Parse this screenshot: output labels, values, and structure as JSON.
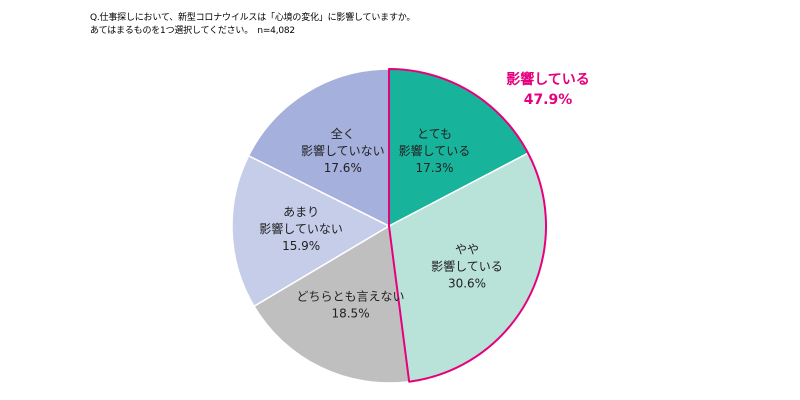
{
  "question": {
    "line1": "Q.仕事探しにおいて、新型コロナウイルスは「心境の変化」に影響していますか。",
    "line2": "あてはまるものを1つ選択してください。　n=4,082"
  },
  "callout": {
    "label": "影響している",
    "value": "47.9%",
    "color": "#e6007e"
  },
  "chart_data": {
    "type": "pie",
    "start_angle_deg": 0,
    "direction": "clockwise",
    "slices": [
      {
        "label_lines": [
          "とても",
          "影響している"
        ],
        "value": 17.3,
        "value_label": "17.3%",
        "color": "#17b39a"
      },
      {
        "label_lines": [
          "やや",
          "影響している"
        ],
        "value": 30.6,
        "value_label": "30.6%",
        "color": "#b9e2d9"
      },
      {
        "label_lines": [
          "どちらとも言えない"
        ],
        "value": 18.5,
        "value_label": "18.5%",
        "color": "#bfbfbf"
      },
      {
        "label_lines": [
          "あまり",
          "影響していない"
        ],
        "value": 15.9,
        "value_label": "15.9%",
        "color": "#c5cde9"
      },
      {
        "label_lines": [
          "全く",
          "影響していない"
        ],
        "value": 17.6,
        "value_label": "17.6%",
        "color": "#a5b1dc"
      }
    ],
    "highlight": {
      "slice_indices": [
        0,
        1
      ],
      "outline_color": "#e6007e"
    }
  }
}
